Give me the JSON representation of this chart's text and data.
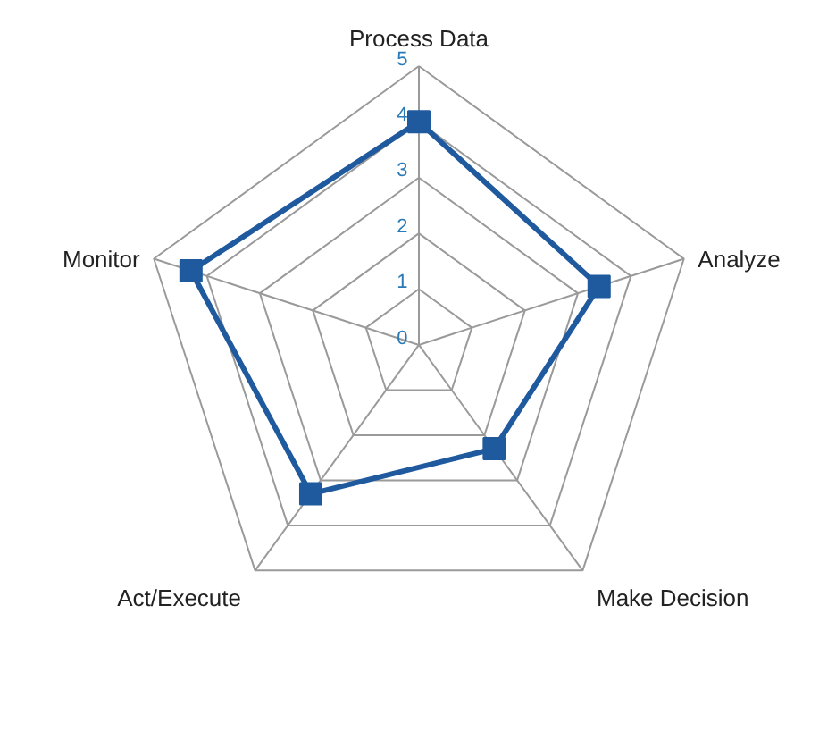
{
  "chart_data": {
    "type": "radar",
    "categories": [
      "Process Data",
      "Analyze",
      "Make Decision",
      "Act/Execute",
      "Monitor"
    ],
    "series": [
      {
        "color": "#1f5a9e",
        "values": [
          4,
          3.4,
          2.3,
          3.3,
          4.3
        ]
      }
    ],
    "ylim": [
      0,
      5
    ],
    "yticks": [
      0,
      1,
      2,
      3,
      4,
      5
    ],
    "grid": true,
    "marker": "square",
    "line_style": "solid"
  }
}
